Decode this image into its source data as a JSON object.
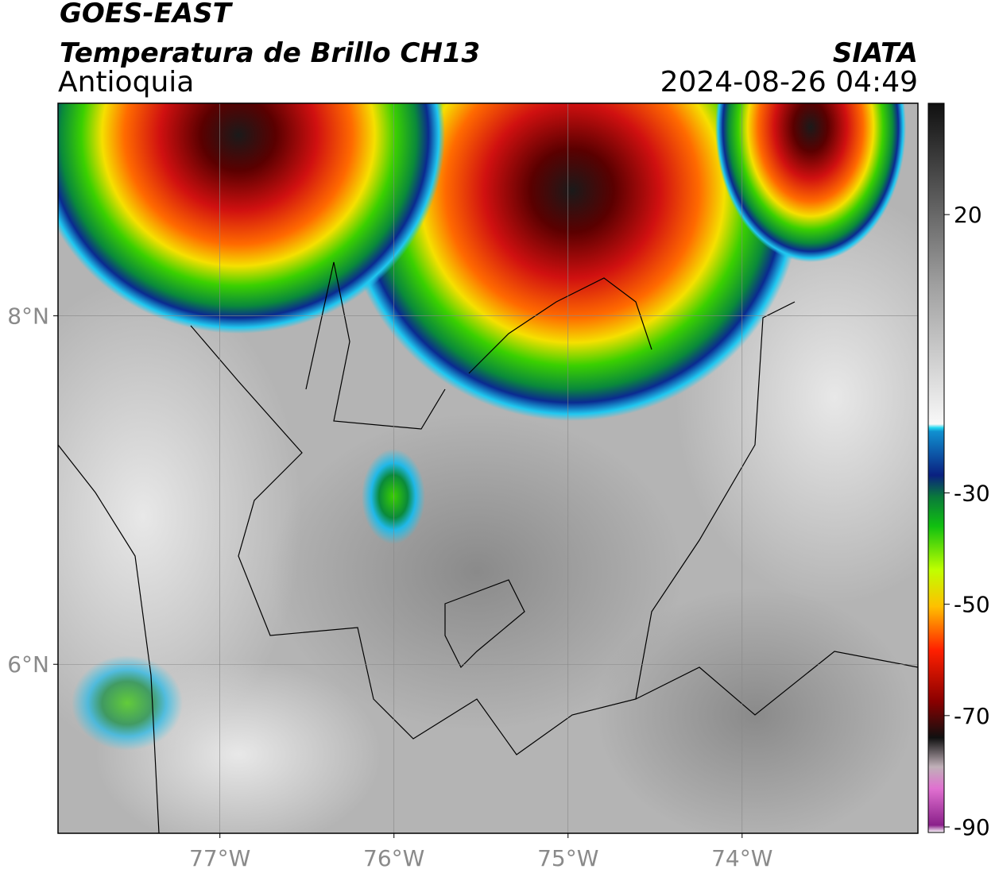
{
  "header": {
    "satellite": "GOES-EAST",
    "product": "Temperatura de Brillo CH13",
    "region": "Antioquia",
    "source": "SIATA",
    "timestamp": "2024-08-26 04:49"
  },
  "map": {
    "xlim": [
      -77.93,
      -72.99
    ],
    "ylim": [
      5.03,
      9.22
    ],
    "xticks": [
      {
        "value": -77,
        "label": "77°W"
      },
      {
        "value": -76,
        "label": "76°W"
      },
      {
        "value": -75,
        "label": "75°W"
      },
      {
        "value": -74,
        "label": "74°W"
      }
    ],
    "yticks": [
      {
        "value": 8,
        "label": "8°N"
      },
      {
        "value": 6,
        "label": "6°N"
      }
    ],
    "grid": true
  },
  "colorbar": {
    "lim": [
      -91,
      40
    ],
    "ticks": [
      20,
      -30,
      -50,
      -70,
      -90
    ]
  }
}
